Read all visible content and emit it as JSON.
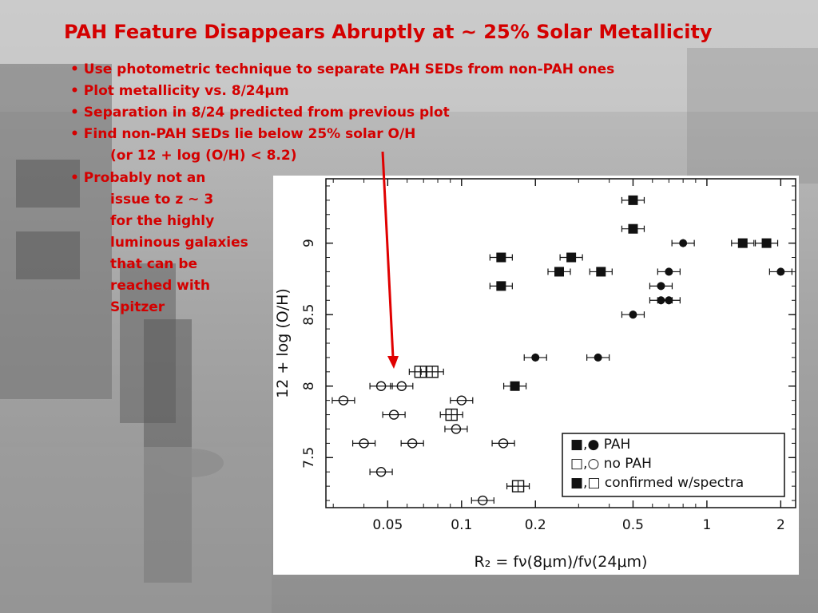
{
  "slide": {
    "title": "PAH Feature Disappears Abruptly at ~ 25% Solar Metallicity",
    "bullets": {
      "b1": "Use photometric technique to separate PAH SEDs from non-PAH ones",
      "b2": "Plot metallicity vs. 8/24μm",
      "b3": "Separation in 8/24 predicted from previous plot",
      "b4": "Find non-PAH SEDs lie below 25% solar O/H",
      "b4_cont": "(or 12 + log (O/H) < 8.2)",
      "b5": [
        "Probably not an",
        "issue to z ~ 3",
        "for the highly",
        "luminous galaxies",
        "that can be",
        "reached with",
        "Spitzer"
      ]
    },
    "colors": {
      "text": "#d40000",
      "arrow": "#e00000"
    }
  },
  "chart_data": {
    "type": "scatter",
    "x_scale": "log",
    "xlim": [
      0.028,
      2.3
    ],
    "ylim": [
      7.15,
      9.45
    ],
    "xticks": [
      "0.05",
      "0.1",
      "0.2",
      "0.5",
      "1",
      "2"
    ],
    "yticks": [
      "7.5",
      "8",
      "8.5",
      "9"
    ],
    "xlabel": "R₂ = fν(8μm)/fν(24μm)",
    "ylabel": "12 + log (O/H)",
    "legend": {
      "position": "bottom-right",
      "entries": [
        "■,● PAH",
        "□,○ no PAH",
        "■,□ confirmed w/spectra"
      ]
    },
    "series": [
      {
        "marker": "filled-square",
        "points": [
          [
            0.5,
            9.3
          ],
          [
            0.5,
            9.1
          ],
          [
            1.4,
            9.0
          ],
          [
            1.75,
            9.0
          ],
          [
            0.145,
            8.9
          ],
          [
            0.28,
            8.9
          ],
          [
            0.25,
            8.8
          ],
          [
            0.37,
            8.8
          ],
          [
            0.145,
            8.7
          ],
          [
            0.165,
            8.0
          ]
        ]
      },
      {
        "marker": "filled-circle",
        "points": [
          [
            0.8,
            9.0
          ],
          [
            2.0,
            8.8
          ],
          [
            0.7,
            8.8
          ],
          [
            0.65,
            8.7
          ],
          [
            0.65,
            8.6
          ],
          [
            0.7,
            8.6
          ],
          [
            0.5,
            8.5
          ],
          [
            0.2,
            8.2
          ],
          [
            0.36,
            8.2
          ]
        ]
      },
      {
        "marker": "open-square",
        "points": [
          [
            0.068,
            8.1
          ],
          [
            0.076,
            8.1
          ],
          [
            0.091,
            7.8
          ],
          [
            0.17,
            7.3
          ]
        ]
      },
      {
        "marker": "open-circle",
        "points": [
          [
            0.047,
            8.0
          ],
          [
            0.057,
            8.0
          ],
          [
            0.033,
            7.9
          ],
          [
            0.1,
            7.9
          ],
          [
            0.053,
            7.8
          ],
          [
            0.095,
            7.7
          ],
          [
            0.04,
            7.6
          ],
          [
            0.063,
            7.6
          ],
          [
            0.148,
            7.6
          ],
          [
            0.047,
            7.4
          ],
          [
            0.122,
            7.2
          ]
        ]
      }
    ]
  }
}
